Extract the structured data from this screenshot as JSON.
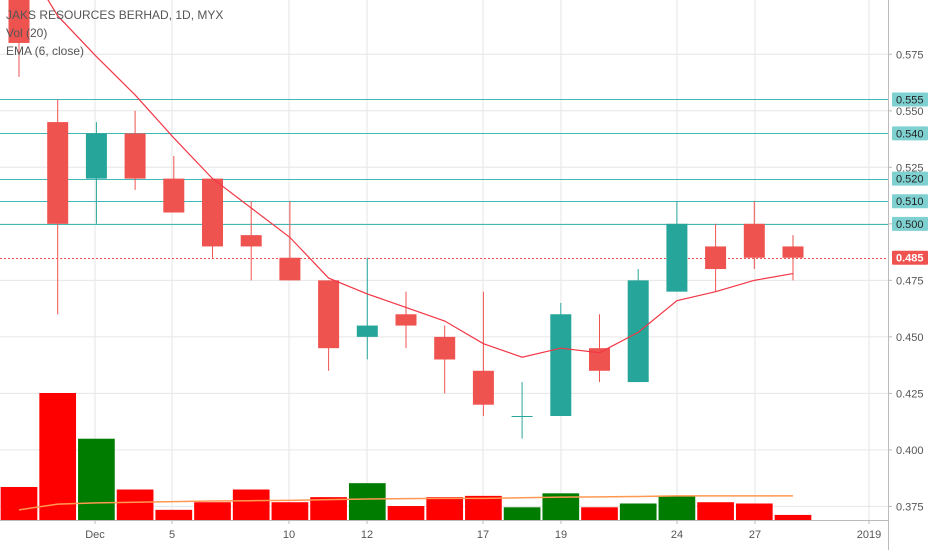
{
  "legend": {
    "title": "JAKS RESOURCES BERHAD, 1D, MYX",
    "volume": "Vol (20)",
    "ema": "EMA (6, close)"
  },
  "colors": {
    "up": "#26a69a",
    "down": "#ef5350",
    "volume_up": "#007c00",
    "volume_down": "#ff0000",
    "ema": "#f23645",
    "volume_ma": "#ff9850",
    "level_line": "#3fb8b8",
    "level_label_bg": "#7fd1d1",
    "last_price_bg": "#ef5350",
    "grid": "#e6e6e6"
  },
  "chart_data": {
    "type": "candlestick",
    "title": "JAKS RESOURCES BERHAD, 1D, MYX",
    "ylim": [
      0.369,
      0.599
    ],
    "y_ticks": [
      "0.575",
      "0.550",
      "0.525",
      "0.500",
      "0.475",
      "0.450",
      "0.425",
      "0.400",
      "0.375"
    ],
    "x_tick_labels": [
      "Dec",
      "5",
      "10",
      "12",
      "17",
      "19",
      "24",
      "27",
      "2019"
    ],
    "grid": true,
    "candles": [
      {
        "o": 0.6,
        "h": 0.6,
        "l": 0.565,
        "c": 0.58
      },
      {
        "o": 0.545,
        "h": 0.555,
        "l": 0.46,
        "c": 0.5
      },
      {
        "o": 0.52,
        "h": 0.545,
        "l": 0.5,
        "c": 0.54
      },
      {
        "o": 0.54,
        "h": 0.55,
        "l": 0.515,
        "c": 0.52
      },
      {
        "o": 0.52,
        "h": 0.53,
        "l": 0.505,
        "c": 0.505
      },
      {
        "o": 0.52,
        "h": 0.52,
        "l": 0.485,
        "c": 0.49
      },
      {
        "o": 0.495,
        "h": 0.51,
        "l": 0.475,
        "c": 0.49
      },
      {
        "o": 0.485,
        "h": 0.51,
        "l": 0.475,
        "c": 0.475
      },
      {
        "o": 0.475,
        "h": 0.475,
        "l": 0.435,
        "c": 0.445
      },
      {
        "o": 0.45,
        "h": 0.485,
        "l": 0.44,
        "c": 0.455
      },
      {
        "o": 0.46,
        "h": 0.47,
        "l": 0.445,
        "c": 0.455
      },
      {
        "o": 0.45,
        "h": 0.455,
        "l": 0.425,
        "c": 0.44
      },
      {
        "o": 0.435,
        "h": 0.47,
        "l": 0.415,
        "c": 0.42
      },
      {
        "o": 0.415,
        "h": 0.43,
        "l": 0.405,
        "c": 0.415
      },
      {
        "o": 0.415,
        "h": 0.465,
        "l": 0.415,
        "c": 0.46
      },
      {
        "o": 0.445,
        "h": 0.46,
        "l": 0.43,
        "c": 0.435
      },
      {
        "o": 0.43,
        "h": 0.48,
        "l": 0.43,
        "c": 0.475
      },
      {
        "o": 0.47,
        "h": 0.51,
        "l": 0.47,
        "c": 0.5
      },
      {
        "o": 0.49,
        "h": 0.5,
        "l": 0.47,
        "c": 0.48
      },
      {
        "o": 0.5,
        "h": 0.51,
        "l": 0.48,
        "c": 0.485
      },
      {
        "o": 0.49,
        "h": 0.495,
        "l": 0.475,
        "c": 0.485
      }
    ],
    "ema_values": [
      0.62,
      0.592,
      0.574,
      0.557,
      0.538,
      0.52,
      0.507,
      0.494,
      0.476,
      0.469,
      0.463,
      0.457,
      0.447,
      0.441,
      0.445,
      0.443,
      0.452,
      0.466,
      0.47,
      0.475,
      0.478
    ],
    "volume": {
      "values": [
        0.26,
        1.0,
        0.64,
        0.24,
        0.08,
        0.14,
        0.24,
        0.14,
        0.18,
        0.29,
        0.11,
        0.18,
        0.19,
        0.1,
        0.21,
        0.1,
        0.13,
        0.19,
        0.14,
        0.13,
        0.04
      ],
      "ma": [
        0.08,
        0.125,
        0.135,
        0.14,
        0.145,
        0.15,
        0.152,
        0.155,
        0.16,
        0.165,
        0.168,
        0.17,
        0.17,
        0.175,
        0.18,
        0.182,
        0.185,
        0.19,
        0.19,
        0.19,
        0.19
      ]
    },
    "levels": [
      {
        "value": 0.555,
        "label": "0.555"
      },
      {
        "value": 0.54,
        "label": "0.540"
      },
      {
        "value": 0.52,
        "label": "0.520"
      },
      {
        "value": 0.51,
        "label": "0.510"
      },
      {
        "value": 0.5,
        "label": "0.500"
      }
    ],
    "last_price": {
      "value": 0.485,
      "label": "0.485"
    }
  }
}
